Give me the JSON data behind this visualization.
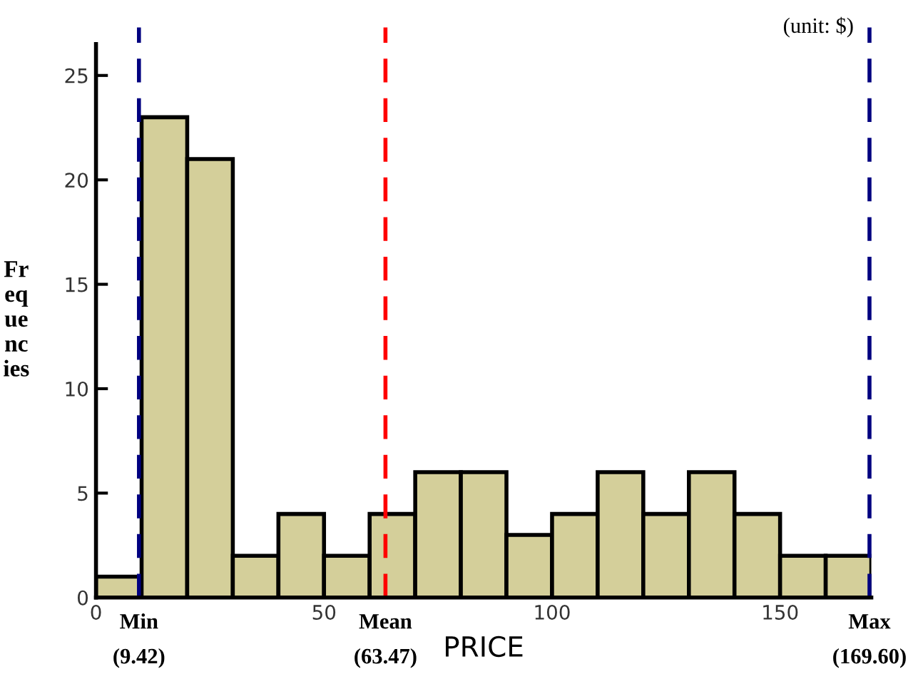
{
  "chart_data": {
    "type": "histogram",
    "xlabel": "PRICE",
    "ylabel": "Fr\neq\nue\nnc\nies",
    "bins": [
      0,
      10,
      20,
      30,
      40,
      50,
      60,
      70,
      80,
      90,
      100,
      110,
      120,
      130,
      140,
      150,
      160,
      170
    ],
    "values": [
      1,
      23,
      21,
      2,
      4,
      2,
      4,
      6,
      6,
      3,
      4,
      6,
      4,
      6,
      4,
      2,
      2
    ],
    "color": "#d4cf9a",
    "xlim": [
      0,
      170
    ],
    "xticks": [
      0,
      50,
      100,
      150
    ],
    "ylim": [
      0,
      26.5
    ],
    "yticks": [
      0,
      5,
      10,
      15,
      20,
      25
    ],
    "grid": false,
    "ref_lines": [
      {
        "axis": "x",
        "value": 9.42,
        "label": "Min\n(9.42)",
        "color": "#000080",
        "line_style": "dashed"
      },
      {
        "axis": "x",
        "value": 63.47,
        "label": "Mean\n(63.47)",
        "color": "#ff0000",
        "line_style": "dashed"
      },
      {
        "axis": "x",
        "value": 169.6,
        "label": "Max\n(169.60)",
        "color": "#000080",
        "line_style": "dashed"
      }
    ],
    "annotations": [
      "(unit: $)"
    ]
  }
}
